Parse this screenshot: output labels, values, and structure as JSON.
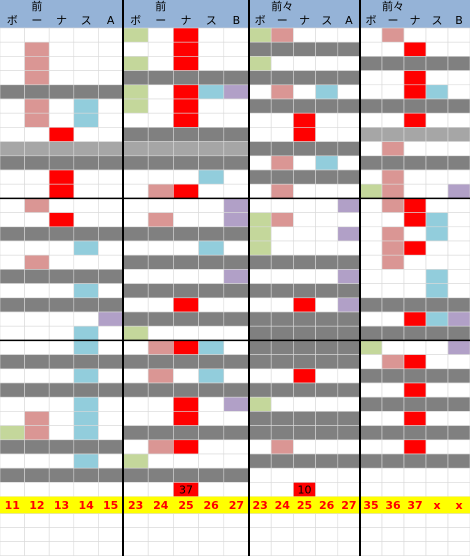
{
  "panels": [
    {
      "title": "前",
      "headers": [
        "ボ",
        "ー",
        "ナ",
        "ス",
        "A"
      ],
      "footer": [
        11,
        12,
        13,
        14,
        15
      ]
    },
    {
      "title": "前",
      "headers": [
        "ボ",
        "ー",
        "ナ",
        "ス",
        "B"
      ],
      "footer": [
        23,
        24,
        25,
        26,
        27
      ],
      "cell_label": 37
    },
    {
      "title": "前々",
      "headers": [
        "ボ",
        "ー",
        "ナ",
        "ス",
        "A"
      ],
      "footer": [
        23,
        24,
        25,
        26,
        27
      ],
      "cell_label": 10
    },
    {
      "title": "前々",
      "headers": [
        "ボ",
        "ー",
        "ナ",
        "ス",
        "B"
      ],
      "footer": [
        35,
        36,
        37,
        "x",
        "x"
      ]
    }
  ]
}
